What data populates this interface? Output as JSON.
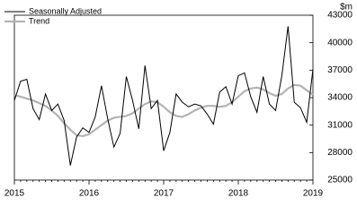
{
  "chart_data": {
    "type": "line",
    "y_label": "$m",
    "categories": [
      "2015",
      null,
      null,
      null,
      null,
      null,
      null,
      null,
      null,
      null,
      null,
      null,
      "2016",
      null,
      null,
      null,
      null,
      null,
      null,
      null,
      null,
      null,
      null,
      null,
      "2017",
      null,
      null,
      null,
      null,
      null,
      null,
      null,
      null,
      null,
      null,
      null,
      "2018",
      null,
      null,
      null,
      null,
      null,
      null,
      null,
      null,
      null,
      null,
      null,
      "2019"
    ],
    "series": [
      {
        "name": "Seasonally Adjusted",
        "color": "#000000",
        "values": [
          33700,
          35800,
          36000,
          32800,
          31600,
          34400,
          32600,
          33300,
          31500,
          26600,
          29700,
          30700,
          30200,
          31900,
          35300,
          31700,
          28600,
          30100,
          36300,
          33700,
          30600,
          37500,
          32800,
          33700,
          28200,
          30200,
          34400,
          33500,
          33000,
          33300,
          33100,
          32200,
          31100,
          34600,
          35200,
          33300,
          36400,
          36700,
          34100,
          32400,
          36300,
          33300,
          32600,
          36400,
          41800,
          33500,
          32900,
          31300,
          37100
        ]
      },
      {
        "name": "Trend",
        "color": "#b3b3b3",
        "values": [
          34300,
          34100,
          33900,
          33700,
          33400,
          33100,
          32600,
          32000,
          31200,
          30500,
          29900,
          29800,
          30000,
          30500,
          31000,
          31500,
          31800,
          31900,
          32000,
          32300,
          32800,
          33300,
          33600,
          33500,
          33000,
          32400,
          32000,
          31900,
          32200,
          32600,
          32900,
          33100,
          33100,
          33000,
          33100,
          33500,
          34100,
          34700,
          35000,
          35100,
          34900,
          34500,
          34200,
          34400,
          35000,
          35400,
          35300,
          34800,
          34300
        ]
      }
    ],
    "ylim": [
      25000,
      43000
    ],
    "yticks": [
      25000,
      28000,
      31000,
      34000,
      37000,
      40000,
      43000
    ],
    "legend": "top-left",
    "grid": false
  }
}
